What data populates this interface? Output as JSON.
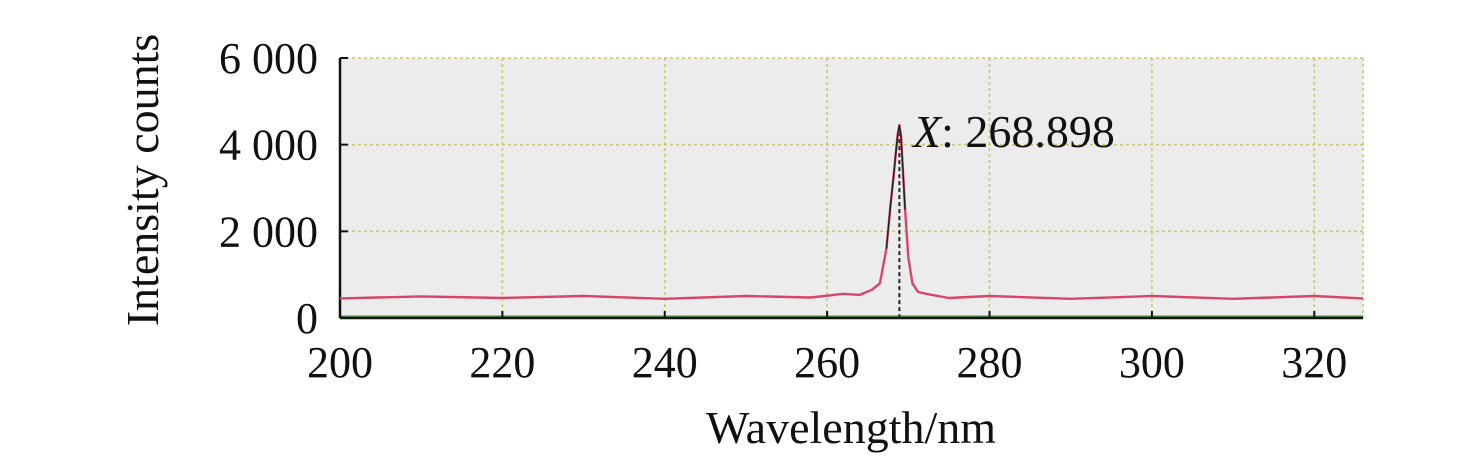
{
  "chart_data": {
    "type": "line",
    "title": "",
    "xlabel": "Wavelength/nm",
    "ylabel": "Intensity counts",
    "xlim": [
      200,
      326
    ],
    "ylim": [
      0,
      6000
    ],
    "x_ticks": [
      200,
      220,
      240,
      260,
      280,
      300,
      320
    ],
    "x_tick_labels": [
      "200",
      "220",
      "240",
      "260",
      "280",
      "300",
      "320"
    ],
    "y_ticks": [
      0,
      2000,
      4000,
      6000
    ],
    "y_tick_labels": [
      "0",
      "2 000",
      "4 000",
      "6 000"
    ],
    "grid": true,
    "legend": "none",
    "colors": {
      "plot_background": "#ececec",
      "grid": "#c8c87a",
      "series": "#d8456a",
      "peak_core": "#222222",
      "baseline": "#4a9a4a"
    },
    "series": [
      {
        "x": [
          200,
          210,
          220,
          230,
          240,
          250,
          258,
          262,
          264,
          265.5,
          266.5,
          267.3,
          267.8,
          268.2,
          268.5,
          268.7,
          268.898,
          269.1,
          269.3,
          269.6,
          270.0,
          270.5,
          271.2,
          272.5,
          275,
          280,
          290,
          300,
          310,
          320,
          326
        ],
        "y": [
          480,
          470,
          490,
          480,
          470,
          480,
          500,
          530,
          560,
          620,
          800,
          1600,
          2600,
          3300,
          3900,
          4250,
          4450,
          4200,
          3500,
          2500,
          1400,
          800,
          600,
          520,
          490,
          480,
          470,
          480,
          470,
          480,
          480
        ]
      }
    ],
    "annotations": [
      {
        "label_prefix": "X",
        "label_value": ": 268.898",
        "x": 268.898
      }
    ]
  }
}
